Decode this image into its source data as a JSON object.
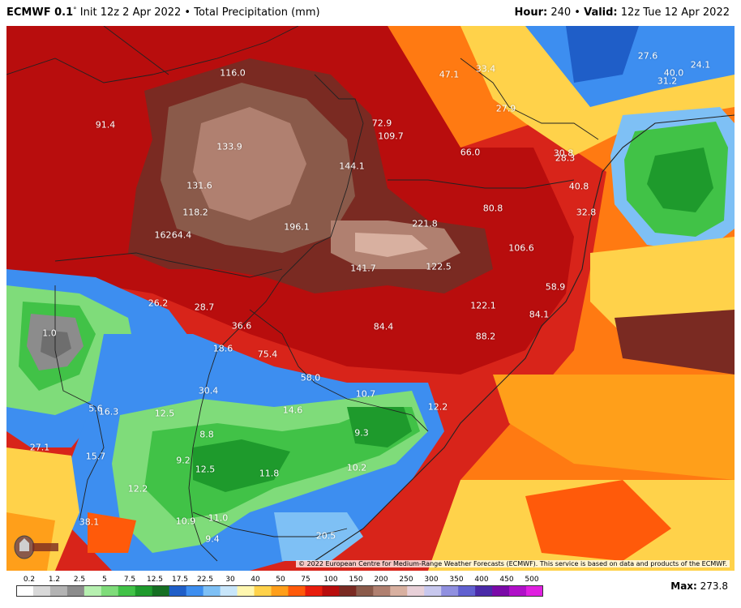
{
  "header": {
    "model": "ECMWF 0.1",
    "degree": "°",
    "init": " Init 12z 2 Apr 2022 • Total Precipitation (mm)",
    "hour_label": "Hour:",
    "hour_value": " 240 • ",
    "valid_label": "Valid:",
    "valid_value": " 12z Tue 12 Apr 2022"
  },
  "map": {
    "values": [
      "116.0",
      "91.4",
      "133.9",
      "131.6",
      "118.2",
      "162",
      "64.4",
      "196.1",
      "144.1",
      "72.9",
      "109.7",
      "47.1",
      "33.4",
      "27.9",
      "66.0",
      "27.6",
      "24.1",
      "40.0",
      "31.2",
      "30.8",
      "28.3",
      "40.8",
      "32.8",
      "80.8",
      "106.6",
      "221.8",
      "141.7",
      "122.5",
      "58.9",
      "122.1",
      "84.1",
      "84.4",
      "88.2",
      "26.2",
      "28.7",
      "36.6",
      "1.0",
      "18.6",
      "75.4",
      "58.0",
      "30.4",
      "10.7",
      "12.2",
      "14.6",
      "5.6",
      "16.3",
      "12.5",
      "9.3",
      "8.8",
      "9.2",
      "12.5",
      "11.8",
      "10.2",
      "27.1",
      "15.7",
      "12.2",
      "38.1",
      "10.9",
      "11.0",
      "9.4",
      "20.5"
    ],
    "copyright": "© 2022 European Centre for Medium-Range Weather Forecasts (ECMWF). This service is based on data and products of the ECMWF."
  },
  "legend": {
    "ticks": [
      "0.2",
      "1.2",
      "2.5",
      "5",
      "7.5",
      "12.5",
      "17.5",
      "22.5",
      "30",
      "40",
      "50",
      "75",
      "100",
      "150",
      "200",
      "250",
      "300",
      "350",
      "400",
      "450",
      "500"
    ],
    "colors": [
      "#ffffff",
      "#d9d9d9",
      "#b3b3b3",
      "#8c8c8c",
      "#b6f0b0",
      "#7fdc7a",
      "#41c247",
      "#1e9a2c",
      "#156f22",
      "#1f5ec8",
      "#3d8ef0",
      "#7ec0f5",
      "#c8e6fa",
      "#fff7b0",
      "#ffd24a",
      "#ff9f1a",
      "#ff5a0a",
      "#e81d0d",
      "#b80d0d",
      "#7a2a22",
      "#8a5a4a",
      "#b08070",
      "#d8b0a0",
      "#e8d0d8",
      "#c8c8ee",
      "#9090e0",
      "#6060d0",
      "#4a2aa8",
      "#7a0aa8",
      "#b010c8",
      "#e020e0"
    ],
    "max_label": "Max:",
    "max_value": " 273.8"
  }
}
